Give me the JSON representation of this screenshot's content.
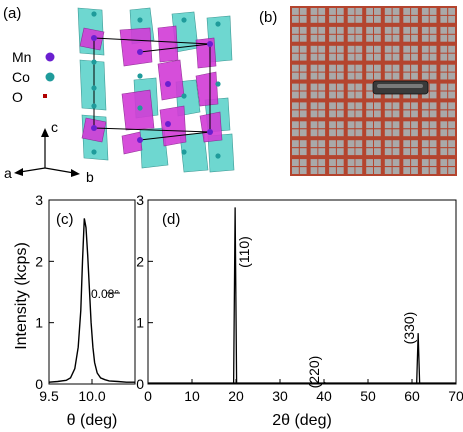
{
  "panels": {
    "a": {
      "label": "(a)",
      "legend": [
        {
          "label": "Mn",
          "color": "#6a1fd0"
        },
        {
          "label": "Co",
          "color": "#1f9b9b"
        },
        {
          "label": "O",
          "color": "#b00000"
        }
      ],
      "axes": {
        "a": "a",
        "b": "b",
        "c": "c"
      },
      "colors": {
        "octahedra_magenta": "#d23bd7",
        "octahedra_cyan": "#5fd3cc"
      }
    },
    "b": {
      "label": "(b)",
      "colors": {
        "grid": "#b4442e",
        "background": "#a9a9a9"
      }
    }
  },
  "chart_data": [
    {
      "panel": "(c)",
      "type": "line",
      "xlabel": "θ (deg)",
      "ylabel": "Intensity (kcps)",
      "xlim": [
        9.5,
        10.5
      ],
      "ylim": [
        0,
        3
      ],
      "xticks": [
        "9.5",
        "10.0"
      ],
      "yticks": [
        "0",
        "1",
        "2",
        "3"
      ],
      "annotation": "0.08°",
      "fwhm_deg": 0.08,
      "x": [
        9.5,
        9.6,
        9.7,
        9.75,
        9.8,
        9.84,
        9.87,
        9.89,
        9.91,
        9.93,
        9.95,
        9.97,
        9.99,
        10.01,
        10.03,
        10.06,
        10.1,
        10.15,
        10.2,
        10.3,
        10.4,
        10.5
      ],
      "y": [
        0.03,
        0.04,
        0.06,
        0.1,
        0.25,
        0.6,
        1.2,
        2.0,
        2.7,
        2.55,
        2.1,
        1.55,
        1.0,
        0.6,
        0.35,
        0.18,
        0.1,
        0.07,
        0.05,
        0.04,
        0.03,
        0.03
      ]
    },
    {
      "panel": "(d)",
      "type": "line",
      "xlabel": "2θ (deg)",
      "xlim": [
        0,
        70
      ],
      "ylim": [
        0,
        3
      ],
      "xticks": [
        "0",
        "10",
        "20",
        "30",
        "40",
        "50",
        "60",
        "70"
      ],
      "yticks": [
        "0",
        "1",
        "2",
        "3"
      ],
      "peaks": [
        {
          "x": 19.8,
          "y": 2.88,
          "label": "(110)"
        },
        {
          "x": 40.2,
          "y": 0.02,
          "label": "(220)"
        },
        {
          "x": 61.4,
          "y": 0.83,
          "label": "(330)"
        }
      ]
    }
  ],
  "panel_labels": {
    "c": "(c)",
    "d": "(d)"
  }
}
